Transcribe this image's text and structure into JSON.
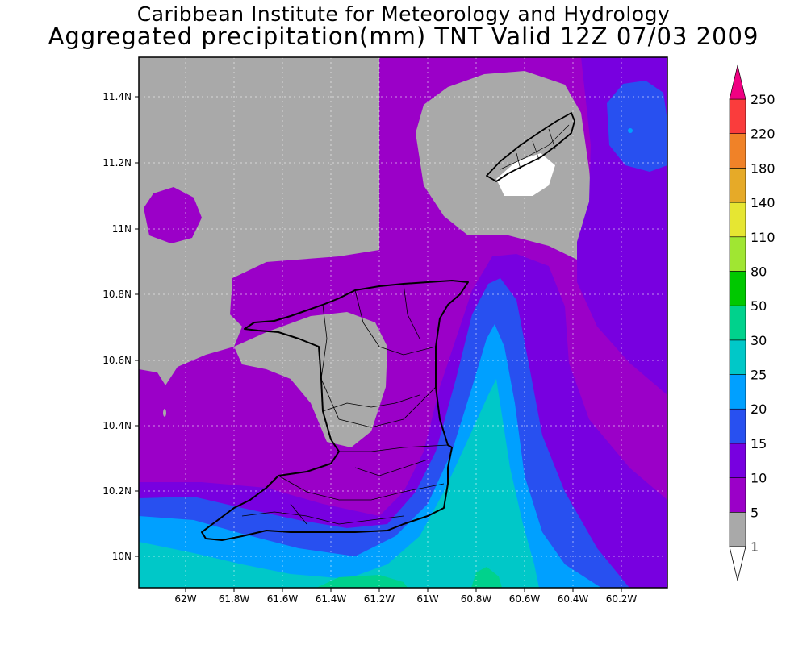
{
  "header": {
    "title": "Caribbean Institute for Meteorology and Hydrology",
    "subtitle": "Aggregated precipitation(mm) TNT Valid 12Z 07/03 2009"
  },
  "map": {
    "lat_ticks": [
      "11.4N",
      "11.2N",
      "11N",
      "10.8N",
      "10.6N",
      "10.4N",
      "10.2N",
      "10N"
    ],
    "lon_ticks": [
      "62W",
      "61.8W",
      "61.6W",
      "61.4W",
      "61.2W",
      "61W",
      "60.8W",
      "60.6W",
      "60.4W",
      "60.2W"
    ]
  },
  "colorbar": {
    "levels": [
      "1",
      "5",
      "10",
      "15",
      "20",
      "25",
      "30",
      "50",
      "80",
      "110",
      "140",
      "180",
      "220",
      "250"
    ],
    "colors": {
      "below": "#ffffff",
      "bands": [
        "#a9a9a9",
        "#9b00c8",
        "#7800e0",
        "#2850f0",
        "#00a0ff",
        "#00c8c8",
        "#00d28c",
        "#00c800",
        "#a0e632",
        "#e6e632",
        "#e6aa28",
        "#f08228",
        "#fa3c3c"
      ],
      "above": "#f00082"
    }
  }
}
